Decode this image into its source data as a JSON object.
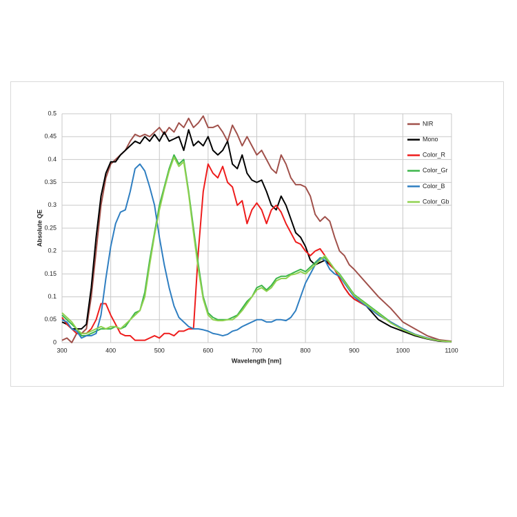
{
  "chart_data": {
    "type": "line",
    "xlabel": "Wavelength [nm]",
    "ylabel": "Absolute QE",
    "x": [
      300,
      310,
      320,
      330,
      340,
      350,
      360,
      370,
      380,
      390,
      400,
      410,
      420,
      430,
      440,
      450,
      460,
      470,
      480,
      490,
      500,
      510,
      520,
      530,
      540,
      550,
      560,
      570,
      580,
      590,
      600,
      610,
      620,
      630,
      640,
      650,
      660,
      670,
      680,
      690,
      700,
      710,
      720,
      730,
      740,
      750,
      760,
      770,
      780,
      790,
      800,
      810,
      820,
      830,
      840,
      850,
      860,
      870,
      880,
      890,
      900,
      925,
      950,
      975,
      1000,
      1025,
      1050,
      1075,
      1100
    ],
    "xlim": [
      300,
      1100
    ],
    "xticks": [
      300,
      400,
      500,
      600,
      700,
      800,
      900,
      1000,
      1100
    ],
    "ylim": [
      0,
      0.5
    ],
    "yticks": [
      0,
      0.05,
      0.1,
      0.15,
      0.2,
      0.25,
      0.3,
      0.35,
      0.4,
      0.45,
      0.5
    ],
    "grid": true,
    "legend": "upper right",
    "series": [
      {
        "name": "NIR",
        "color": "#a0504a",
        "values": [
          0.005,
          0.01,
          0.0,
          0.02,
          0.02,
          0.03,
          0.1,
          0.2,
          0.3,
          0.36,
          0.39,
          0.4,
          0.41,
          0.42,
          0.44,
          0.455,
          0.45,
          0.455,
          0.45,
          0.46,
          0.47,
          0.455,
          0.47,
          0.46,
          0.48,
          0.47,
          0.49,
          0.47,
          0.48,
          0.495,
          0.47,
          0.47,
          0.475,
          0.46,
          0.44,
          0.475,
          0.455,
          0.43,
          0.45,
          0.43,
          0.41,
          0.42,
          0.4,
          0.38,
          0.37,
          0.41,
          0.39,
          0.36,
          0.345,
          0.345,
          0.34,
          0.32,
          0.28,
          0.265,
          0.275,
          0.265,
          0.23,
          0.2,
          0.19,
          0.17,
          0.16,
          0.13,
          0.1,
          0.075,
          0.045,
          0.03,
          0.015,
          0.006,
          0.003
        ]
      },
      {
        "name": "Mono",
        "color": "#000000",
        "values": [
          0.045,
          0.04,
          0.03,
          0.03,
          0.03,
          0.04,
          0.12,
          0.23,
          0.32,
          0.37,
          0.395,
          0.395,
          0.41,
          0.42,
          0.43,
          0.44,
          0.435,
          0.45,
          0.44,
          0.455,
          0.44,
          0.46,
          0.44,
          0.445,
          0.45,
          0.42,
          0.465,
          0.43,
          0.44,
          0.43,
          0.45,
          0.42,
          0.41,
          0.42,
          0.44,
          0.39,
          0.38,
          0.41,
          0.37,
          0.355,
          0.35,
          0.355,
          0.33,
          0.3,
          0.29,
          0.32,
          0.3,
          0.27,
          0.24,
          0.23,
          0.21,
          0.18,
          0.17,
          0.175,
          0.18,
          0.17,
          0.16,
          0.14,
          0.12,
          0.105,
          0.095,
          0.08,
          0.05,
          0.035,
          0.025,
          0.015,
          0.008,
          0.003,
          0.002
        ]
      },
      {
        "name": "Color_R",
        "color": "#ee1c1c",
        "values": [
          0.055,
          0.04,
          0.03,
          0.02,
          0.02,
          0.02,
          0.03,
          0.05,
          0.085,
          0.085,
          0.06,
          0.04,
          0.02,
          0.015,
          0.015,
          0.005,
          0.005,
          0.005,
          0.01,
          0.015,
          0.01,
          0.02,
          0.02,
          0.015,
          0.025,
          0.025,
          0.03,
          0.03,
          0.2,
          0.33,
          0.39,
          0.37,
          0.36,
          0.385,
          0.35,
          0.34,
          0.3,
          0.31,
          0.26,
          0.29,
          0.305,
          0.29,
          0.26,
          0.29,
          0.3,
          0.285,
          0.26,
          0.24,
          0.22,
          0.215,
          0.2,
          0.19,
          0.2,
          0.205,
          0.19,
          0.17,
          0.16,
          0.14,
          0.12,
          0.105,
          0.095,
          0.08,
          0.06,
          0.045,
          0.03,
          0.018,
          0.01,
          0.004,
          0.002
        ]
      },
      {
        "name": "Color_Gr",
        "color": "#3cb54a",
        "values": [
          0.06,
          0.05,
          0.04,
          0.03,
          0.015,
          0.015,
          0.02,
          0.025,
          0.03,
          0.03,
          0.03,
          0.035,
          0.03,
          0.035,
          0.05,
          0.065,
          0.07,
          0.11,
          0.18,
          0.24,
          0.3,
          0.34,
          0.38,
          0.41,
          0.39,
          0.4,
          0.33,
          0.25,
          0.17,
          0.1,
          0.065,
          0.055,
          0.05,
          0.05,
          0.05,
          0.055,
          0.06,
          0.075,
          0.09,
          0.1,
          0.12,
          0.125,
          0.115,
          0.125,
          0.14,
          0.145,
          0.145,
          0.15,
          0.155,
          0.16,
          0.155,
          0.165,
          0.175,
          0.185,
          0.185,
          0.175,
          0.16,
          0.15,
          0.135,
          0.12,
          0.105,
          0.085,
          0.065,
          0.045,
          0.03,
          0.018,
          0.01,
          0.004,
          0.002
        ]
      },
      {
        "name": "Color_B",
        "color": "#2e7ec1",
        "values": [
          0.05,
          0.045,
          0.03,
          0.025,
          0.01,
          0.015,
          0.015,
          0.02,
          0.06,
          0.14,
          0.21,
          0.26,
          0.285,
          0.29,
          0.33,
          0.38,
          0.39,
          0.375,
          0.34,
          0.3,
          0.23,
          0.17,
          0.12,
          0.08,
          0.055,
          0.045,
          0.035,
          0.03,
          0.03,
          0.028,
          0.025,
          0.02,
          0.018,
          0.015,
          0.018,
          0.025,
          0.028,
          0.035,
          0.04,
          0.045,
          0.05,
          0.05,
          0.045,
          0.045,
          0.05,
          0.05,
          0.048,
          0.055,
          0.07,
          0.1,
          0.13,
          0.15,
          0.17,
          0.185,
          0.18,
          0.16,
          0.15,
          0.145,
          0.13,
          0.115,
          0.1,
          0.08,
          0.06,
          0.045,
          0.03,
          0.018,
          0.01,
          0.004,
          0.002
        ]
      },
      {
        "name": "Color_Gb",
        "color": "#8fd14f",
        "values": [
          0.065,
          0.055,
          0.045,
          0.03,
          0.02,
          0.02,
          0.025,
          0.03,
          0.035,
          0.03,
          0.035,
          0.035,
          0.03,
          0.04,
          0.05,
          0.06,
          0.07,
          0.1,
          0.17,
          0.235,
          0.29,
          0.335,
          0.375,
          0.405,
          0.385,
          0.395,
          0.325,
          0.24,
          0.16,
          0.095,
          0.06,
          0.05,
          0.048,
          0.048,
          0.05,
          0.05,
          0.058,
          0.07,
          0.085,
          0.1,
          0.115,
          0.12,
          0.112,
          0.12,
          0.135,
          0.14,
          0.14,
          0.148,
          0.15,
          0.155,
          0.15,
          0.16,
          0.17,
          0.18,
          0.19,
          0.175,
          0.16,
          0.148,
          0.133,
          0.118,
          0.103,
          0.083,
          0.063,
          0.043,
          0.028,
          0.017,
          0.009,
          0.004,
          0.002
        ]
      }
    ]
  }
}
